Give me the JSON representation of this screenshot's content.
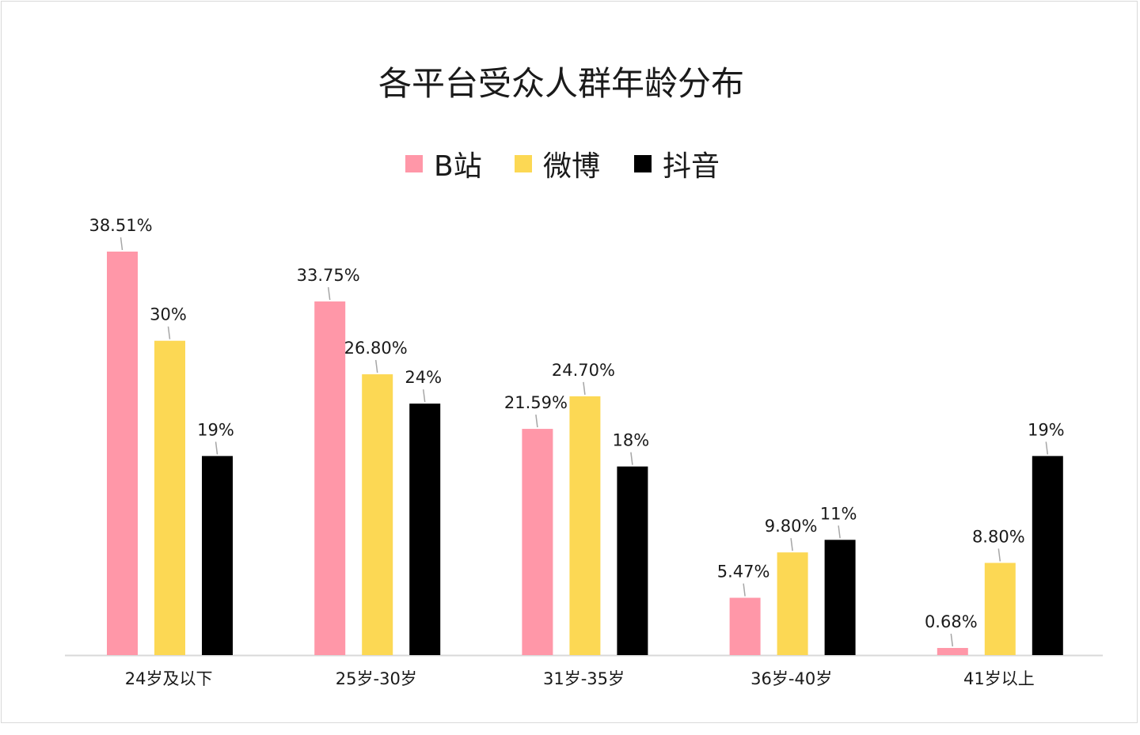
{
  "chart_data": {
    "type": "bar",
    "title": "各平台受众人群年龄分布",
    "categories": [
      "24岁及以下",
      "25岁-30岁",
      "31岁-35岁",
      "36岁-40岁",
      "41岁以上"
    ],
    "series": [
      {
        "name": "B站",
        "color": "#ff97a8",
        "values": [
          38.51,
          33.75,
          21.59,
          5.47,
          0.68
        ],
        "labels": [
          "38.51%",
          "33.75%",
          "21.59%",
          "5.47%",
          "0.68%"
        ]
      },
      {
        "name": "微博",
        "color": "#fcd854",
        "values": [
          30,
          26.8,
          24.7,
          9.8,
          8.8
        ],
        "labels": [
          "30%",
          "26.80%",
          "24.70%",
          "9.80%",
          "8.80%"
        ]
      },
      {
        "name": "抖音",
        "color": "#000000",
        "values": [
          19,
          24,
          18,
          11,
          19
        ],
        "labels": [
          "19%",
          "24%",
          "18%",
          "11%",
          "19%"
        ]
      }
    ],
    "ylim": [
      0,
      38.51
    ],
    "xlabel": "",
    "ylabel": "",
    "grid": false,
    "legend": "top-center",
    "axis_color": "#d9d9d9",
    "leader_color": "#a6a6a6"
  }
}
